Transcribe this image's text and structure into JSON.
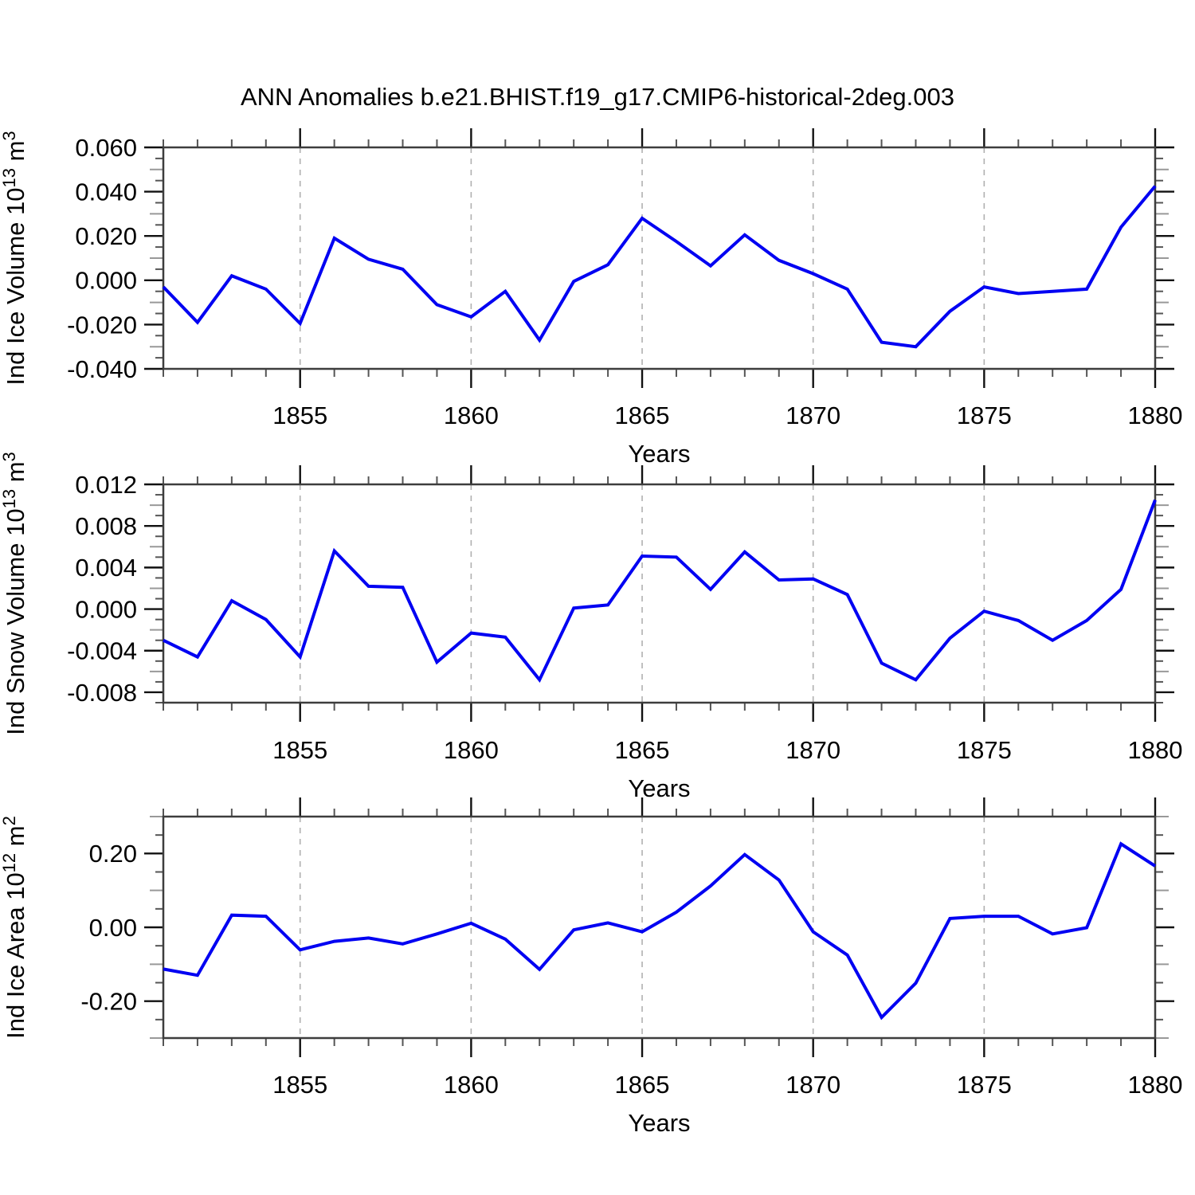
{
  "title": "ANN Anomalies b.e21.BHIST.f19_g17.CMIP6-historical-2deg.003",
  "page": {
    "background": "#ffffff"
  },
  "colors": {
    "line": "#0000f2",
    "frame": "#3d3d3d",
    "tick_major": "#111111",
    "tick_minor": "#555555",
    "tick_mid": "#999999",
    "gridline": "#b0b0b0",
    "text": "#000000"
  },
  "years": [
    1851,
    1852,
    1853,
    1854,
    1855,
    1856,
    1857,
    1858,
    1859,
    1860,
    1861,
    1862,
    1863,
    1864,
    1865,
    1866,
    1867,
    1868,
    1869,
    1870,
    1871,
    1872,
    1873,
    1874,
    1875,
    1876,
    1877,
    1878,
    1879,
    1880
  ],
  "x_axis": {
    "label": "Years",
    "major_tick_labels": [
      "1855",
      "1860",
      "1865",
      "1870",
      "1875",
      "1880"
    ],
    "major_tick_years": [
      1855,
      1860,
      1865,
      1870,
      1875,
      1880
    ],
    "grid_years": [
      1855,
      1860,
      1865,
      1870,
      1875
    ]
  },
  "chart_data": [
    {
      "type": "line",
      "series_name": "Ind Ice Volume anomaly",
      "ylabel": "Ind Ice Volume 10¹³ m³",
      "ylabel_parts": [
        [
          "Ind Ice Volume 10",
          false
        ],
        [
          "13",
          true
        ],
        [
          " m",
          false
        ],
        [
          "3",
          true
        ]
      ],
      "xlabel": "Years",
      "ylim": [
        -0.04,
        0.06
      ],
      "ytick_labels": [
        "0.060",
        "0.040",
        "0.020",
        "0.000",
        "-0.020",
        "-0.040"
      ],
      "ytick_values": [
        0.06,
        0.04,
        0.02,
        0.0,
        -0.02,
        -0.04
      ],
      "ymid_step": 0.01,
      "yminor_step": 0.005,
      "grid": "vertical-dashed",
      "legend": "none",
      "values": [
        -0.003,
        -0.019,
        0.002,
        -0.004,
        -0.0195,
        0.019,
        0.0095,
        0.005,
        -0.011,
        -0.0165,
        -0.005,
        -0.027,
        -0.0005,
        0.007,
        0.028,
        0.0175,
        0.0065,
        0.0205,
        0.009,
        0.003,
        -0.004,
        -0.028,
        -0.03,
        -0.014,
        -0.003,
        -0.006,
        -0.005,
        -0.004,
        0.024,
        0.0425
      ]
    },
    {
      "type": "line",
      "series_name": "Ind Snow Volume anomaly",
      "ylabel": "Ind Snow Volume 10¹³ m³",
      "ylabel_parts": [
        [
          "Ind Snow Volume 10",
          false
        ],
        [
          "13",
          true
        ],
        [
          " m",
          false
        ],
        [
          "3",
          true
        ]
      ],
      "xlabel": "Years",
      "ylim": [
        -0.009,
        0.012
      ],
      "ytick_labels": [
        "0.012",
        "0.008",
        "0.004",
        "0.000",
        "-0.004",
        "-0.008"
      ],
      "ytick_values": [
        0.012,
        0.008,
        0.004,
        0.0,
        -0.004,
        -0.008
      ],
      "ymid_step": 0.002,
      "yminor_step": 0.001,
      "grid": "vertical-dashed",
      "legend": "none",
      "values": [
        -0.003,
        -0.0046,
        0.0008,
        -0.001,
        -0.0046,
        0.0056,
        0.0022,
        0.0021,
        -0.0051,
        -0.0023,
        -0.0027,
        -0.0068,
        0.0001,
        0.0004,
        0.0051,
        0.005,
        0.0019,
        0.0055,
        0.0028,
        0.0029,
        0.0014,
        -0.0052,
        -0.0068,
        -0.0028,
        -0.0002,
        -0.0011,
        -0.003,
        -0.0011,
        0.0019,
        0.0105
      ]
    },
    {
      "type": "line",
      "series_name": "Ind Ice Area anomaly",
      "ylabel": "Ind Ice Area 10¹² m²",
      "ylabel_parts": [
        [
          "Ind Ice Area 10",
          false
        ],
        [
          "12",
          true
        ],
        [
          " m",
          false
        ],
        [
          "2",
          true
        ]
      ],
      "xlabel": "Years",
      "ylim": [
        -0.3,
        0.3
      ],
      "ytick_labels": [
        "0.20",
        "0.00",
        "-0.20"
      ],
      "ytick_values": [
        0.2,
        0.0,
        -0.2
      ],
      "ymid_step": 0.1,
      "yminor_step": 0.05,
      "grid": "vertical-dashed",
      "legend": "none",
      "values": [
        -0.113,
        -0.13,
        0.033,
        0.03,
        -0.061,
        -0.038,
        -0.029,
        -0.045,
        -0.018,
        0.011,
        -0.032,
        -0.114,
        -0.007,
        0.012,
        -0.012,
        0.041,
        0.112,
        0.197,
        0.128,
        -0.012,
        -0.075,
        -0.244,
        -0.151,
        0.024,
        0.03,
        0.03,
        -0.018,
        -0.001,
        0.226,
        0.166
      ]
    }
  ]
}
